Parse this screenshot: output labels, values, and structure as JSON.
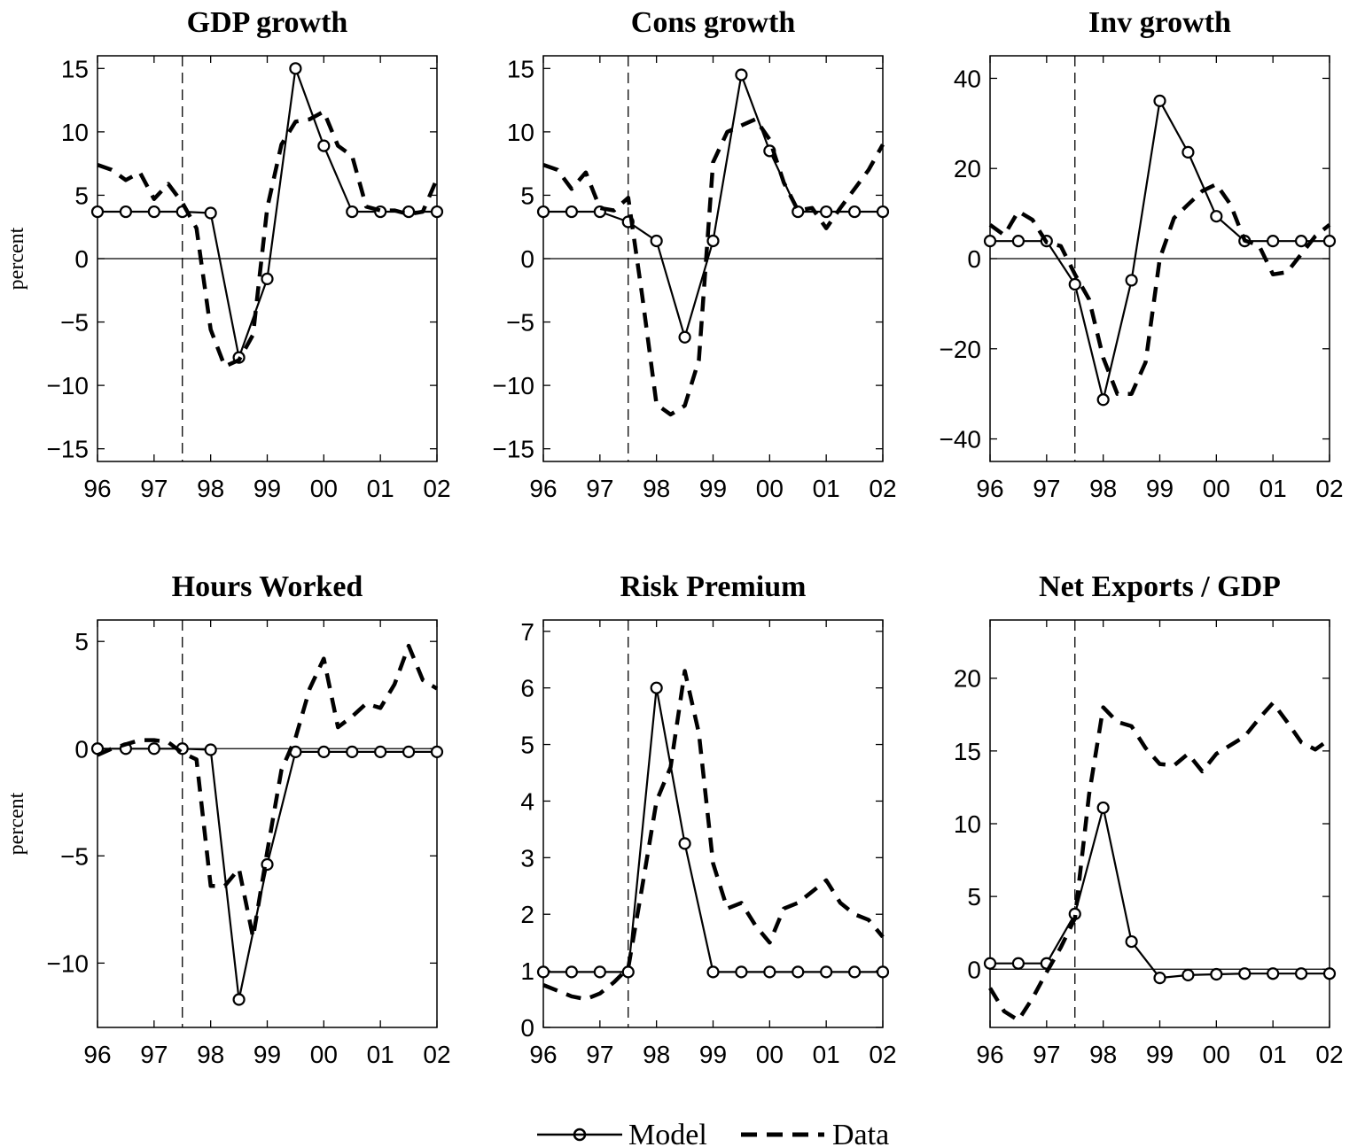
{
  "legend": {
    "model": "Model",
    "data": "Data"
  },
  "chart_data": [
    {
      "type": "line",
      "title": "GDP growth",
      "ylabel": "percent",
      "xlim": [
        1996,
        2002
      ],
      "ylim": [
        -16,
        16
      ],
      "yticks": [
        15,
        10,
        5,
        0,
        -5,
        -10,
        -15
      ],
      "xticks": [
        1996,
        1997,
        1998,
        1999,
        2000,
        2001,
        2002
      ],
      "xtick_labels": [
        "96",
        "97",
        "98",
        "99",
        "00",
        "01",
        "02"
      ],
      "event_line_x": 1997.5,
      "zero_line": true,
      "series": [
        {
          "name": "Model",
          "style": "solid-circle",
          "x": [
            1996,
            1996.5,
            1997,
            1997.5,
            1998,
            1998.5,
            1999,
            1999.5,
            2000,
            2000.5,
            2001,
            2001.5,
            2002
          ],
          "y": [
            3.7,
            3.7,
            3.7,
            3.7,
            3.6,
            -7.8,
            -1.6,
            15.0,
            8.9,
            3.7,
            3.7,
            3.7,
            3.7
          ]
        },
        {
          "name": "Data",
          "style": "dashed",
          "x": [
            1996,
            1996.25,
            1996.5,
            1996.75,
            1997,
            1997.25,
            1997.5,
            1997.75,
            1998,
            1998.25,
            1998.5,
            1998.75,
            1999,
            1999.25,
            1999.5,
            1999.75,
            2000,
            2000.25,
            2000.5,
            2000.75,
            2001,
            2001.25,
            2001.5,
            2001.75,
            2002
          ],
          "y": [
            7.4,
            7.0,
            6.2,
            6.8,
            4.7,
            5.9,
            4.4,
            2.4,
            -5.6,
            -8.5,
            -8.0,
            -6.0,
            4.0,
            9.0,
            10.8,
            11.0,
            11.6,
            8.9,
            8.1,
            4.1,
            3.8,
            3.8,
            3.5,
            3.7,
            6.3
          ]
        }
      ]
    },
    {
      "type": "line",
      "title": "Cons growth",
      "ylabel": "",
      "xlim": [
        1996,
        2002
      ],
      "ylim": [
        -16,
        16
      ],
      "yticks": [
        15,
        10,
        5,
        0,
        -5,
        -10,
        -15
      ],
      "xticks": [
        1996,
        1997,
        1998,
        1999,
        2000,
        2001,
        2002
      ],
      "xtick_labels": [
        "96",
        "97",
        "98",
        "99",
        "00",
        "01",
        "02"
      ],
      "event_line_x": 1997.5,
      "zero_line": true,
      "series": [
        {
          "name": "Model",
          "style": "solid-circle",
          "x": [
            1996,
            1996.5,
            1997,
            1997.5,
            1998,
            1998.5,
            1999,
            1999.5,
            2000,
            2000.5,
            2001,
            2001.5,
            2002
          ],
          "y": [
            3.7,
            3.7,
            3.7,
            2.9,
            1.4,
            -6.2,
            1.4,
            14.5,
            8.5,
            3.7,
            3.7,
            3.7,
            3.7
          ]
        },
        {
          "name": "Data",
          "style": "dashed",
          "x": [
            1996,
            1996.25,
            1996.5,
            1996.75,
            1997,
            1997.25,
            1997.5,
            1997.75,
            1998,
            1998.25,
            1998.5,
            1998.75,
            1999,
            1999.25,
            1999.5,
            1999.75,
            2000,
            2000.25,
            2000.5,
            2000.75,
            2001,
            2001.25,
            2001.5,
            2001.75,
            2002
          ],
          "y": [
            7.4,
            7.0,
            5.5,
            6.8,
            4.0,
            3.8,
            4.8,
            -3.0,
            -11.5,
            -12.3,
            -11.6,
            -8.0,
            7.6,
            10.0,
            10.5,
            11.0,
            9.4,
            6.0,
            3.8,
            4.0,
            2.4,
            4.0,
            5.5,
            7.0,
            9.0
          ]
        }
      ]
    },
    {
      "type": "line",
      "title": "Inv growth",
      "ylabel": "",
      "xlim": [
        1996,
        2002
      ],
      "ylim": [
        -45,
        45
      ],
      "yticks": [
        40,
        20,
        0,
        -20,
        -40
      ],
      "xticks": [
        1996,
        1997,
        1998,
        1999,
        2000,
        2001,
        2002
      ],
      "xtick_labels": [
        "96",
        "97",
        "98",
        "99",
        "00",
        "01",
        "02"
      ],
      "event_line_x": 1997.5,
      "zero_line": true,
      "series": [
        {
          "name": "Model",
          "style": "solid-circle",
          "x": [
            1996,
            1996.5,
            1997,
            1997.5,
            1998,
            1998.5,
            1999,
            1999.5,
            2000,
            2000.5,
            2001,
            2001.5,
            2002
          ],
          "y": [
            3.9,
            3.9,
            3.9,
            -5.7,
            -31.3,
            -4.8,
            35.0,
            23.6,
            9.4,
            3.9,
            3.9,
            3.9,
            3.9
          ]
        },
        {
          "name": "Data",
          "style": "dashed",
          "x": [
            1996,
            1996.25,
            1996.5,
            1996.75,
            1997,
            1997.25,
            1997.5,
            1997.75,
            1998,
            1998.25,
            1998.5,
            1998.75,
            1999,
            1999.25,
            1999.5,
            1999.75,
            2000,
            2000.25,
            2000.5,
            2000.75,
            2001,
            2001.25,
            2001.5,
            2001.75,
            2002
          ],
          "y": [
            7.5,
            5.2,
            10.5,
            8.6,
            3.6,
            2.8,
            -3.5,
            -9.0,
            -22.0,
            -30.0,
            -30.0,
            -23.0,
            0.0,
            9.0,
            12.0,
            15.0,
            16.5,
            12.0,
            4.0,
            3.0,
            -3.5,
            -3.0,
            1.0,
            5.0,
            7.5
          ]
        }
      ]
    },
    {
      "type": "line",
      "title": "Hours Worked",
      "ylabel": "percent",
      "xlim": [
        1996,
        2002
      ],
      "ylim": [
        -13,
        6
      ],
      "yticks": [
        5,
        0,
        -5,
        -10
      ],
      "xticks": [
        1996,
        1997,
        1998,
        1999,
        2000,
        2001,
        2002
      ],
      "xtick_labels": [
        "96",
        "97",
        "98",
        "99",
        "00",
        "01",
        "02"
      ],
      "event_line_x": 1997.5,
      "zero_line": true,
      "series": [
        {
          "name": "Model",
          "style": "solid-circle",
          "x": [
            1996,
            1996.5,
            1997,
            1997.5,
            1998,
            1998.5,
            1999,
            1999.5,
            2000,
            2000.5,
            2001,
            2001.5,
            2002
          ],
          "y": [
            0.0,
            0.0,
            0.0,
            0.0,
            -0.05,
            -11.7,
            -5.4,
            -0.15,
            -0.15,
            -0.15,
            -0.15,
            -0.15,
            -0.15
          ]
        },
        {
          "name": "Data",
          "style": "dashed",
          "x": [
            1996,
            1996.25,
            1996.5,
            1996.75,
            1997,
            1997.25,
            1997.5,
            1997.75,
            1998,
            1998.25,
            1998.5,
            1998.75,
            1999,
            1999.25,
            1999.5,
            1999.75,
            2000,
            2000.25,
            2000.5,
            2000.75,
            2001,
            2001.25,
            2001.5,
            2001.75,
            2002
          ],
          "y": [
            -0.3,
            0.0,
            0.2,
            0.4,
            0.4,
            0.3,
            -0.2,
            -0.5,
            -6.4,
            -6.4,
            -5.6,
            -8.8,
            -4.8,
            -1.0,
            0.5,
            2.8,
            4.2,
            1.0,
            1.5,
            2.1,
            1.9,
            3.0,
            4.8,
            3.2,
            2.8
          ]
        }
      ]
    },
    {
      "type": "line",
      "title": "Risk Premium",
      "ylabel": "",
      "xlim": [
        1996,
        2002
      ],
      "ylim": [
        0,
        7.2
      ],
      "yticks": [
        7,
        6,
        5,
        4,
        3,
        2,
        1,
        0
      ],
      "xticks": [
        1996,
        1997,
        1998,
        1999,
        2000,
        2001,
        2002
      ],
      "xtick_labels": [
        "96",
        "97",
        "98",
        "99",
        "00",
        "01",
        "02"
      ],
      "event_line_x": 1997.5,
      "zero_line": false,
      "series": [
        {
          "name": "Model",
          "style": "solid-circle",
          "x": [
            1996,
            1996.5,
            1997,
            1997.5,
            1998,
            1998.5,
            1999,
            1999.5,
            2000,
            2000.5,
            2001,
            2001.5,
            2002
          ],
          "y": [
            0.98,
            0.98,
            0.98,
            0.98,
            6.0,
            3.25,
            0.98,
            0.98,
            0.98,
            0.98,
            0.98,
            0.98,
            0.98
          ]
        },
        {
          "name": "Data",
          "style": "dashed",
          "x": [
            1996,
            1996.25,
            1996.5,
            1996.75,
            1997,
            1997.25,
            1997.5,
            1997.75,
            1998,
            1998.25,
            1998.5,
            1998.75,
            1999,
            1999.25,
            1999.5,
            1999.75,
            2000,
            2000.25,
            2000.5,
            2000.75,
            2001,
            2001.25,
            2001.5,
            2001.75,
            2002
          ],
          "y": [
            0.75,
            0.65,
            0.55,
            0.5,
            0.6,
            0.8,
            1.05,
            2.5,
            4.0,
            4.6,
            6.3,
            5.2,
            2.9,
            2.1,
            2.2,
            1.8,
            1.5,
            2.1,
            2.2,
            2.4,
            2.6,
            2.2,
            2.0,
            1.9,
            1.6
          ]
        }
      ]
    },
    {
      "type": "line",
      "title": "Net Exports / GDP",
      "ylabel": "",
      "xlim": [
        1996,
        2002
      ],
      "ylim": [
        -4,
        24
      ],
      "yticks": [
        20,
        15,
        10,
        5,
        0
      ],
      "xticks": [
        1996,
        1997,
        1998,
        1999,
        2000,
        2001,
        2002
      ],
      "xtick_labels": [
        "96",
        "97",
        "98",
        "99",
        "00",
        "01",
        "02"
      ],
      "event_line_x": 1997.5,
      "zero_line": true,
      "series": [
        {
          "name": "Model",
          "style": "solid-circle",
          "x": [
            1996,
            1996.5,
            1997,
            1997.5,
            1998,
            1998.5,
            1999,
            1999.5,
            2000,
            2000.5,
            2001,
            2001.5,
            2002
          ],
          "y": [
            0.4,
            0.4,
            0.4,
            3.8,
            11.1,
            1.9,
            -0.6,
            -0.4,
            -0.35,
            -0.3,
            -0.3,
            -0.3,
            -0.3
          ]
        },
        {
          "name": "Data",
          "style": "dashed",
          "x": [
            1996,
            1996.25,
            1996.5,
            1996.75,
            1997,
            1997.25,
            1997.5,
            1997.75,
            1998,
            1998.25,
            1998.5,
            1998.75,
            1999,
            1999.25,
            1999.5,
            1999.75,
            2000,
            2000.25,
            2000.5,
            2000.75,
            2001,
            2001.25,
            2001.5,
            2001.75,
            2002
          ],
          "y": [
            -1.3,
            -2.9,
            -3.5,
            -2.0,
            -0.2,
            1.5,
            3.5,
            12.0,
            18.0,
            17.0,
            16.7,
            15.2,
            14.1,
            14.0,
            14.8,
            13.6,
            14.8,
            15.4,
            16.0,
            17.2,
            18.3,
            17.0,
            15.6,
            15.1,
            15.8
          ]
        }
      ]
    }
  ]
}
